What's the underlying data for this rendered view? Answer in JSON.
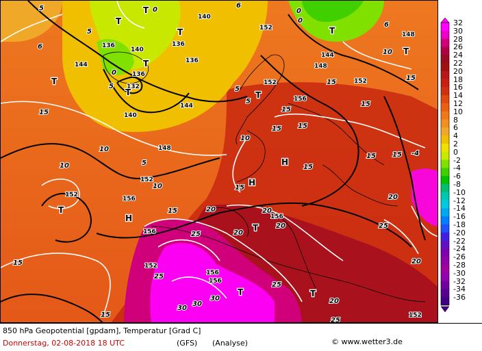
{
  "footer": {
    "title": "850 hPa Geopotential [gpdam], Temperatur [Grad C]",
    "date": "Donnerstag, 02-08-2018  18 UTC",
    "model": "(GFS)",
    "run": "(Analyse)",
    "copyright": "© www.wetter3.de"
  },
  "legend": {
    "labels": [
      "32",
      "30",
      "28",
      "26",
      "24",
      "22",
      "20",
      "18",
      "16",
      "14",
      "12",
      "10",
      "8",
      "6",
      "4",
      "2",
      "0",
      "-2",
      "-4",
      "-6",
      "-8",
      "-10",
      "-12",
      "-14",
      "-16",
      "-18",
      "-20",
      "-22",
      "-24",
      "-26",
      "-28",
      "-30",
      "-32",
      "-34",
      "-36"
    ],
    "colors": [
      "#ff00ff",
      "#ee00cc",
      "#d0007a",
      "#b00045",
      "#9a0a20",
      "#a01010",
      "#b81818",
      "#c82010",
      "#d03010",
      "#e04a10",
      "#e86010",
      "#f07818",
      "#f09020",
      "#f0a828",
      "#f0c000",
      "#f0e000",
      "#c8e800",
      "#80e000",
      "#40d000",
      "#00c000",
      "#00c070",
      "#00c8b0",
      "#00c8e0",
      "#00a8f0",
      "#0080ff",
      "#2050ff",
      "#4020e0",
      "#6010c0",
      "#8000b0",
      "#9000a8",
      "#a000a0",
      "#9000b0",
      "#7000a0",
      "#5a0090",
      "#400080"
    ]
  },
  "map": {
    "pressure_centers": [
      "T",
      "T",
      "T",
      "T",
      "T",
      "T",
      "T",
      "T",
      "T",
      "T",
      "T",
      "T",
      "T",
      "H",
      "H",
      "H"
    ],
    "geopotential_labels": [
      "132",
      "136",
      "136",
      "136",
      "136",
      "140",
      "140",
      "140",
      "144",
      "144",
      "144",
      "148",
      "148",
      "148",
      "152",
      "152",
      "152",
      "152",
      "152",
      "152",
      "152",
      "156",
      "156",
      "156",
      "156",
      "156",
      "156"
    ],
    "temperature_labels": [
      "0",
      "0",
      "0",
      "0",
      "5",
      "5",
      "5",
      "5",
      "5",
      "5",
      "6",
      "6",
      "6",
      "10",
      "10",
      "10",
      "10",
      "10",
      "15",
      "15",
      "15",
      "15",
      "15",
      "15",
      "15",
      "15",
      "15",
      "15",
      "15",
      "15",
      "15",
      "15",
      "20",
      "20",
      "20",
      "20",
      "20",
      "20",
      "20",
      "25",
      "25",
      "25",
      "25",
      "25",
      "30",
      "30",
      "30",
      "-4"
    ]
  }
}
